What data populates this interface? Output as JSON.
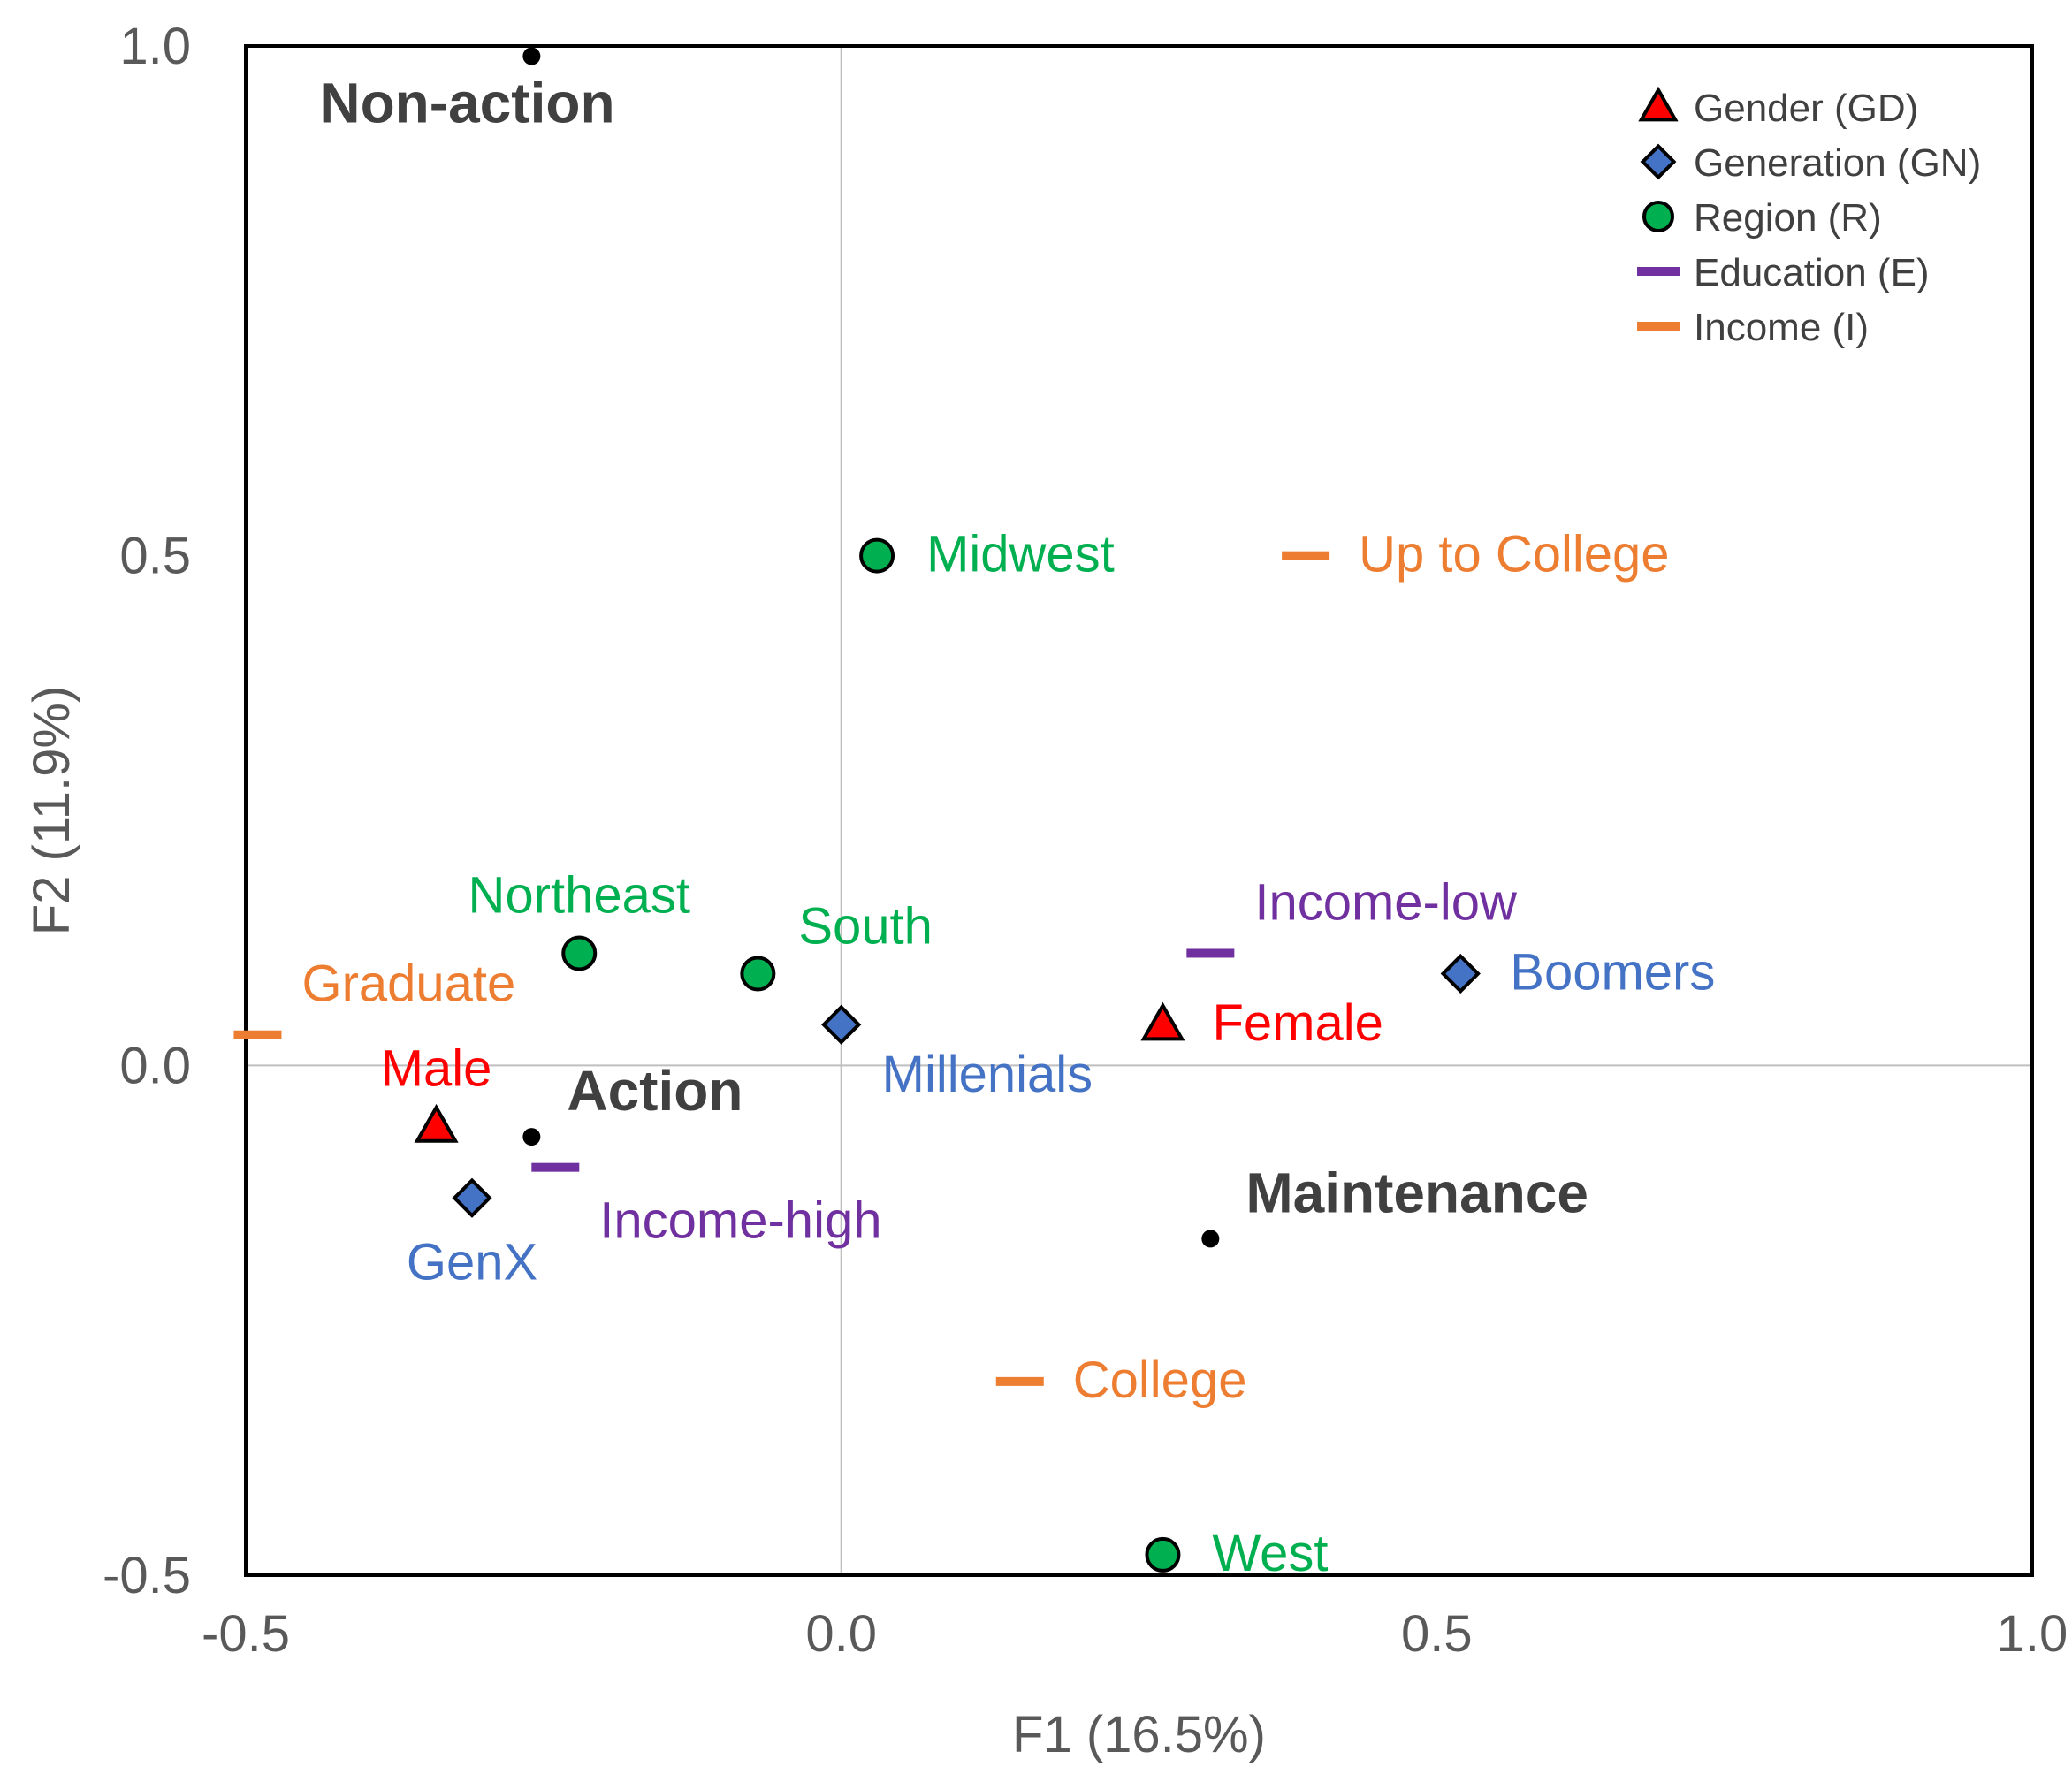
{
  "chart_data": {
    "type": "scatter",
    "xlabel": "F1 (16.5%)",
    "ylabel": "F2 (11.9%)",
    "xlim": [
      -0.5,
      1.0
    ],
    "ylim": [
      -0.5,
      1.0
    ],
    "xticks": [
      "-0.5",
      "0.0",
      "0.5",
      "1.0"
    ],
    "yticks": [
      "1.0",
      "0.5",
      "0.0",
      "-0.5"
    ],
    "legend_position": "top-right",
    "legend": [
      {
        "name": "Gender (GD)",
        "marker": "triangle",
        "color": "#FF0000"
      },
      {
        "name": "Generation (GN)",
        "marker": "diamond",
        "color": "#4472C4"
      },
      {
        "name": "Region (R)",
        "marker": "circle",
        "color": "#00B050"
      },
      {
        "name": "Education (E)",
        "marker": "dash",
        "color": "#7030A0"
      },
      {
        "name": "Income (I)",
        "marker": "dash",
        "color": "#ED7D31"
      }
    ],
    "series": [
      {
        "name": "Gender (GD)",
        "marker": "triangle",
        "color": "#FF0000",
        "points": [
          {
            "label": "Male",
            "x": -0.34,
            "y": -0.06,
            "label_pos": "above"
          },
          {
            "label": "Female",
            "x": 0.27,
            "y": 0.04,
            "label_pos": "right"
          }
        ]
      },
      {
        "name": "Generation (GN)",
        "marker": "diamond",
        "color": "#4472C4",
        "points": [
          {
            "label": "GenX",
            "x": -0.31,
            "y": -0.13,
            "label_pos": "below"
          },
          {
            "label": "Millenials",
            "x": 0.0,
            "y": 0.04,
            "label_pos": "right-below"
          },
          {
            "label": "Boomers",
            "x": 0.52,
            "y": 0.09,
            "label_pos": "right"
          }
        ]
      },
      {
        "name": "Region (R)",
        "marker": "circle",
        "color": "#00B050",
        "points": [
          {
            "label": "Midwest",
            "x": 0.03,
            "y": 0.5,
            "label_pos": "right"
          },
          {
            "label": "Northeast",
            "x": -0.22,
            "y": 0.11,
            "label_pos": "above"
          },
          {
            "label": "South",
            "x": -0.07,
            "y": 0.09,
            "label_pos": "right-above"
          },
          {
            "label": "West",
            "x": 0.27,
            "y": -0.48,
            "label_pos": "right"
          }
        ]
      },
      {
        "name": "Education (E)",
        "marker": "dash",
        "color": "#7030A0",
        "points": [
          {
            "label": "Income-low",
            "x": 0.31,
            "y": 0.11,
            "label_pos": "right-above"
          },
          {
            "label": "Income-high",
            "x": -0.24,
            "y": -0.1,
            "label_pos": "right-below"
          }
        ]
      },
      {
        "name": "Income (I)",
        "marker": "dash",
        "color": "#ED7D31",
        "points": [
          {
            "label": "Up to College",
            "x": 0.39,
            "y": 0.5,
            "label_pos": "right"
          },
          {
            "label": "Graduate",
            "x": -0.49,
            "y": 0.03,
            "label_pos": "right-above"
          },
          {
            "label": "College",
            "x": 0.15,
            "y": -0.31,
            "label_pos": "right"
          }
        ]
      }
    ],
    "supplementary_points": [
      {
        "label": "Non-action",
        "x": -0.26,
        "y": 0.99,
        "label_pos": "below"
      },
      {
        "label": "Action",
        "x": -0.26,
        "y": -0.07,
        "label_pos": "right-above"
      },
      {
        "label": "Maintenance",
        "x": 0.31,
        "y": -0.17,
        "label_pos": "right-above"
      }
    ]
  }
}
